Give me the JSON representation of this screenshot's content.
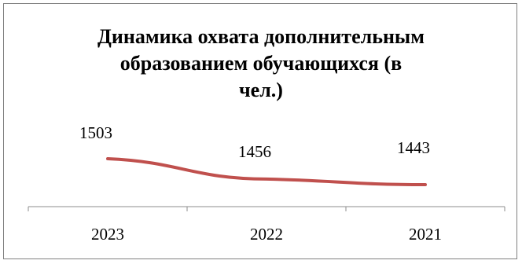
{
  "chart_data": {
    "type": "line",
    "title_lines": [
      "Динамика охвата дополнительным",
      "образованием обучающихся (в",
      "чел.)"
    ],
    "categories": [
      "2023",
      "2022",
      "2021"
    ],
    "values": [
      1503,
      1456,
      1443
    ],
    "data_labels": [
      "1503",
      "1456",
      "1443"
    ],
    "line_color": "#c0504d",
    "legend": "none",
    "grid": false
  }
}
